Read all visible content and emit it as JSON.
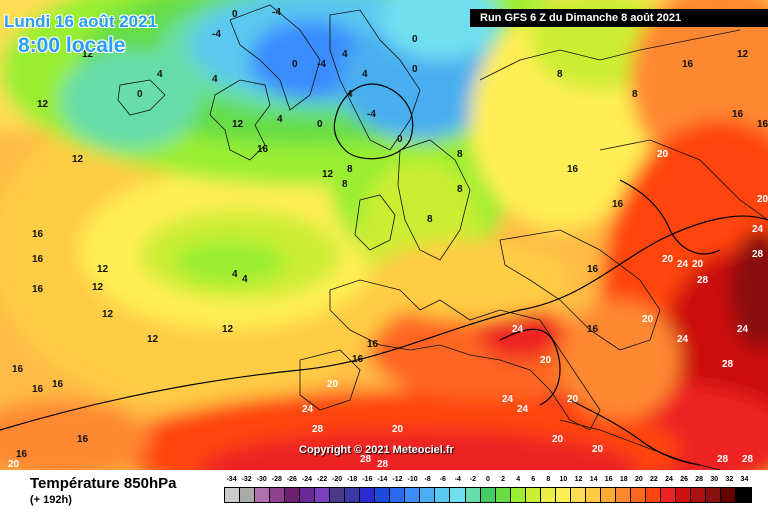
{
  "header": {
    "date": "Lundi 16 août 2021",
    "time": "8:00 locale",
    "run": "Run GFS 6 Z du Dimanche 8 août 2021"
  },
  "copyright": "Copyright © 2021 Meteociel.fr",
  "footer": {
    "title": "Température 850hPa",
    "subtitle": "(+ 192h)"
  },
  "legend": {
    "labels": [
      "-34",
      "-32",
      "-30",
      "-28",
      "-26",
      "-24",
      "-22",
      "-20",
      "-18",
      "-16",
      "-14",
      "-12",
      "-10",
      "-8",
      "-6",
      "-4",
      "-2",
      "0",
      "2",
      "4",
      "6",
      "8",
      "10",
      "12",
      "14",
      "16",
      "18",
      "20",
      "22",
      "24",
      "26",
      "28",
      "30",
      "32",
      "34"
    ],
    "colors": [
      "#cccccc",
      "#aaaaaa",
      "#b070b0",
      "#904090",
      "#702070",
      "#6a2a9a",
      "#7a40c0",
      "#4a3a8a",
      "#3a3aaa",
      "#2a2ad0",
      "#1a4ae0",
      "#2a6af0",
      "#3a8cff",
      "#4aaef0",
      "#5ac8f0",
      "#70e0f0",
      "#66ddaa",
      "#44cc66",
      "#66dd44",
      "#99ee33",
      "#ccee33",
      "#eeee44",
      "#ffee55",
      "#ffdd55",
      "#ffcc44",
      "#ffaa33",
      "#ff8833",
      "#ff6622",
      "#ff4411",
      "#ee2222",
      "#cc1111",
      "#aa1111",
      "#881111",
      "#660000",
      "#000000"
    ]
  },
  "isotherm_labels": [
    {
      "text": "-4"
    },
    {
      "text": "-4"
    },
    {
      "text": "0"
    },
    {
      "text": "4"
    },
    {
      "text": "0"
    },
    {
      "text": "0"
    },
    {
      "text": "4"
    },
    {
      "text": "0"
    },
    {
      "text": "-4"
    },
    {
      "text": "4"
    },
    {
      "text": "4"
    },
    {
      "text": "0"
    },
    {
      "text": "-4"
    },
    {
      "text": "0"
    },
    {
      "text": "0"
    },
    {
      "text": "4"
    },
    {
      "text": "8"
    },
    {
      "text": "8"
    },
    {
      "text": "8"
    },
    {
      "text": "12"
    },
    {
      "text": "12"
    },
    {
      "text": "12"
    },
    {
      "text": "16"
    },
    {
      "text": "12"
    },
    {
      "text": "4"
    },
    {
      "text": "4"
    },
    {
      "text": "12"
    },
    {
      "text": "8"
    },
    {
      "text": "8"
    },
    {
      "text": "4"
    },
    {
      "text": "8"
    },
    {
      "text": "8"
    },
    {
      "text": "16"
    },
    {
      "text": "12"
    },
    {
      "text": "16"
    },
    {
      "text": "12"
    },
    {
      "text": "16"
    },
    {
      "text": "12"
    },
    {
      "text": "12"
    },
    {
      "text": "12"
    },
    {
      "text": "16"
    },
    {
      "text": "16"
    },
    {
      "text": "16"
    },
    {
      "text": "16"
    },
    {
      "text": "16"
    },
    {
      "text": "12"
    },
    {
      "text": "16"
    },
    {
      "text": "16"
    },
    {
      "text": "16"
    },
    {
      "text": "20"
    },
    {
      "text": "16"
    },
    {
      "text": "20"
    },
    {
      "text": "24"
    },
    {
      "text": "20"
    },
    {
      "text": "24"
    },
    {
      "text": "20"
    },
    {
      "text": "28"
    },
    {
      "text": "24"
    },
    {
      "text": "20"
    },
    {
      "text": "24"
    },
    {
      "text": "28"
    },
    {
      "text": "28"
    },
    {
      "text": "20"
    },
    {
      "text": "20"
    },
    {
      "text": "24"
    },
    {
      "text": "28"
    },
    {
      "text": "28"
    },
    {
      "text": "28"
    },
    {
      "text": "28"
    },
    {
      "text": "20"
    },
    {
      "text": "16"
    },
    {
      "text": "20"
    },
    {
      "text": "28"
    },
    {
      "text": "24"
    },
    {
      "text": "24"
    },
    {
      "text": "20"
    },
    {
      "text": "16"
    },
    {
      "text": "20"
    },
    {
      "text": "16"
    },
    {
      "text": "16"
    },
    {
      "text": "16"
    },
    {
      "text": "24"
    },
    {
      "text": "20"
    }
  ]
}
